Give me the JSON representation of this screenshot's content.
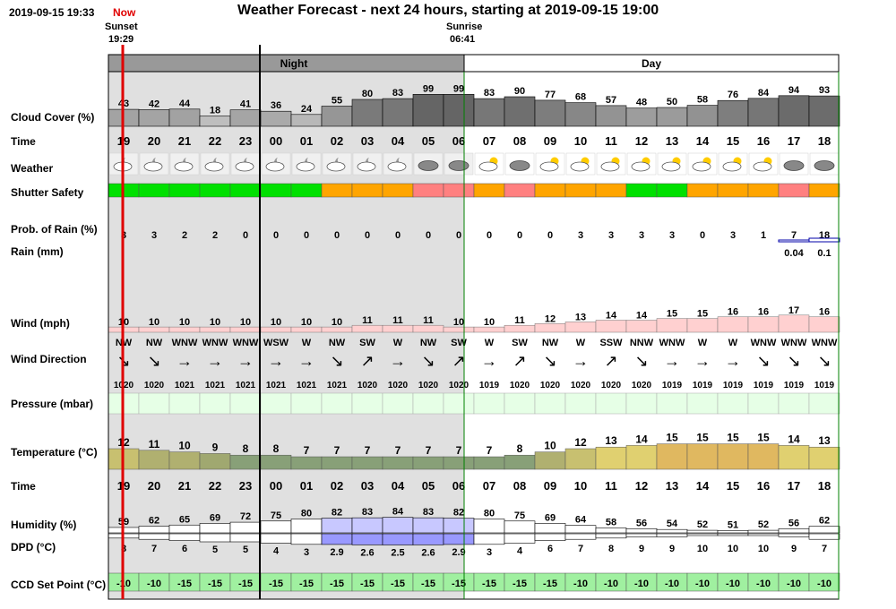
{
  "header": {
    "timestamp": "2019-09-15 19:33",
    "now_label": "Now",
    "title": "Weather Forecast - next 24 hours, starting at 2019-09-15 19:00",
    "sunset_label": "Sunset",
    "sunset_time": "19:29",
    "sunrise_label": "Sunrise",
    "sunrise_time": "06:41"
  },
  "bands": {
    "night": "Night",
    "day": "Day"
  },
  "labels": {
    "cloud": "Cloud Cover (%)",
    "time": "Time",
    "weather": "Weather",
    "shutter": "Shutter Safety",
    "prob_rain": "Prob. of Rain (%)",
    "rain": "Rain (mm)",
    "wind": "Wind (mph)",
    "wind_dir": "Wind Direction",
    "pressure": "Pressure (mbar)",
    "temperature": "Temperature (°C)",
    "time2": "Time",
    "humidity": "Humidity (%)",
    "dpd": "DPD (°C)",
    "ccd": "CCD Set Point (°C)"
  },
  "colors": {
    "now_red": "#e00000",
    "night_shade": "#e0e0e0",
    "day_green": "#008000",
    "shutter_green": "#00e000",
    "shutter_orange": "#ffa500",
    "shutter_salmon": "#ff8080",
    "wind_pink": "#ffd0d0",
    "pressure_fill": "#e6ffe6",
    "ccd_fill": "#a0f0a0",
    "humidity_blue": "#c8c8ff",
    "dpd_blue": "#9999ff"
  },
  "hours": [
    "19",
    "20",
    "21",
    "22",
    "23",
    "00",
    "01",
    "02",
    "03",
    "04",
    "05",
    "06",
    "07",
    "08",
    "09",
    "10",
    "11",
    "12",
    "13",
    "14",
    "15",
    "16",
    "17",
    "18"
  ],
  "cloud": [
    "43",
    "42",
    "44",
    "18",
    "41",
    "36",
    "24",
    "55",
    "80",
    "83",
    "99",
    "99",
    "83",
    "90",
    "77",
    "68",
    "57",
    "48",
    "50",
    "58",
    "76",
    "84",
    "94",
    "93"
  ],
  "weather_icons": [
    "partly-cloudy-night-icon",
    "partly-cloudy-night-icon",
    "partly-cloudy-night-icon",
    "partly-cloudy-night-icon",
    "partly-cloudy-night-icon",
    "partly-cloudy-night-icon",
    "partly-cloudy-night-icon",
    "partly-cloudy-night-icon",
    "partly-cloudy-night-icon",
    "partly-cloudy-night-icon",
    "cloudy-icon",
    "cloudy-icon",
    "partly-cloudy-day-icon",
    "cloudy-icon",
    "partly-cloudy-day-icon",
    "partly-cloudy-day-icon",
    "partly-cloudy-day-icon",
    "partly-cloudy-day-icon",
    "partly-cloudy-day-icon",
    "partly-cloudy-day-icon",
    "partly-cloudy-day-icon",
    "partly-cloudy-day-icon",
    "cloudy-icon",
    "cloudy-icon"
  ],
  "shutter": [
    "safe",
    "safe",
    "safe",
    "safe",
    "safe",
    "safe",
    "safe",
    "caution",
    "caution",
    "caution",
    "unsafe",
    "unsafe",
    "caution",
    "unsafe",
    "caution",
    "caution",
    "caution",
    "safe",
    "safe",
    "caution",
    "caution",
    "caution",
    "unsafe",
    "caution"
  ],
  "prob_rain": [
    "3",
    "3",
    "2",
    "2",
    "0",
    "0",
    "0",
    "0",
    "0",
    "0",
    "0",
    "0",
    "0",
    "0",
    "0",
    "3",
    "3",
    "3",
    "3",
    "0",
    "3",
    "1",
    "7",
    "18"
  ],
  "rain_mm": [
    "",
    "",
    "",
    "",
    "",
    "",
    "",
    "",
    "",
    "",
    "",
    "",
    "",
    "",
    "",
    "",
    "",
    "",
    "",
    "",
    "",
    "",
    "0.04",
    "0.1"
  ],
  "wind": [
    "10",
    "10",
    "10",
    "10",
    "10",
    "10",
    "10",
    "10",
    "11",
    "11",
    "11",
    "10",
    "10",
    "11",
    "12",
    "13",
    "14",
    "14",
    "15",
    "15",
    "16",
    "16",
    "17",
    "16"
  ],
  "wind_dir": [
    "NW",
    "NW",
    "WNW",
    "WNW",
    "WNW",
    "WSW",
    "W",
    "NW",
    "SW",
    "W",
    "NW",
    "SW",
    "W",
    "SW",
    "NW",
    "W",
    "SSW",
    "NNW",
    "WNW",
    "W",
    "W",
    "WNW",
    "WNW",
    "WNW"
  ],
  "wind_arrows": [
    "↘",
    "↘",
    "→",
    "→",
    "→",
    "→",
    "→",
    "↘",
    "↗",
    "→",
    "↘",
    "↗",
    "→",
    "↗",
    "↘",
    "→",
    "↗",
    "↘",
    "→",
    "→",
    "→",
    "↘",
    "↘",
    "↘"
  ],
  "pressure": [
    "1020",
    "1020",
    "1021",
    "1021",
    "1021",
    "1021",
    "1021",
    "1021",
    "1020",
    "1020",
    "1020",
    "1020",
    "1019",
    "1020",
    "1020",
    "1020",
    "1020",
    "1020",
    "1019",
    "1019",
    "1019",
    "1019",
    "1019",
    "1019"
  ],
  "temperature": [
    "12",
    "11",
    "10",
    "9",
    "8",
    "8",
    "7",
    "7",
    "7",
    "7",
    "7",
    "7",
    "7",
    "8",
    "10",
    "12",
    "13",
    "14",
    "15",
    "15",
    "15",
    "15",
    "14",
    "13"
  ],
  "humidity": [
    "59",
    "62",
    "65",
    "69",
    "72",
    "75",
    "80",
    "82",
    "83",
    "84",
    "83",
    "82",
    "80",
    "75",
    "69",
    "64",
    "58",
    "56",
    "54",
    "52",
    "51",
    "52",
    "56",
    "62"
  ],
  "dpd": [
    "8",
    "7",
    "6",
    "5",
    "5",
    "4",
    "3",
    "2.9",
    "2.6",
    "2.5",
    "2.6",
    "2.9",
    "3",
    "4",
    "6",
    "7",
    "8",
    "9",
    "9",
    "10",
    "10",
    "10",
    "9",
    "7"
  ],
  "ccd": [
    "-10",
    "-10",
    "-15",
    "-15",
    "-15",
    "-15",
    "-15",
    "-15",
    "-15",
    "-15",
    "-15",
    "-15",
    "-15",
    "-15",
    "-15",
    "-10",
    "-10",
    "-10",
    "-10",
    "-10",
    "-10",
    "-10",
    "-10",
    "-10"
  ]
}
